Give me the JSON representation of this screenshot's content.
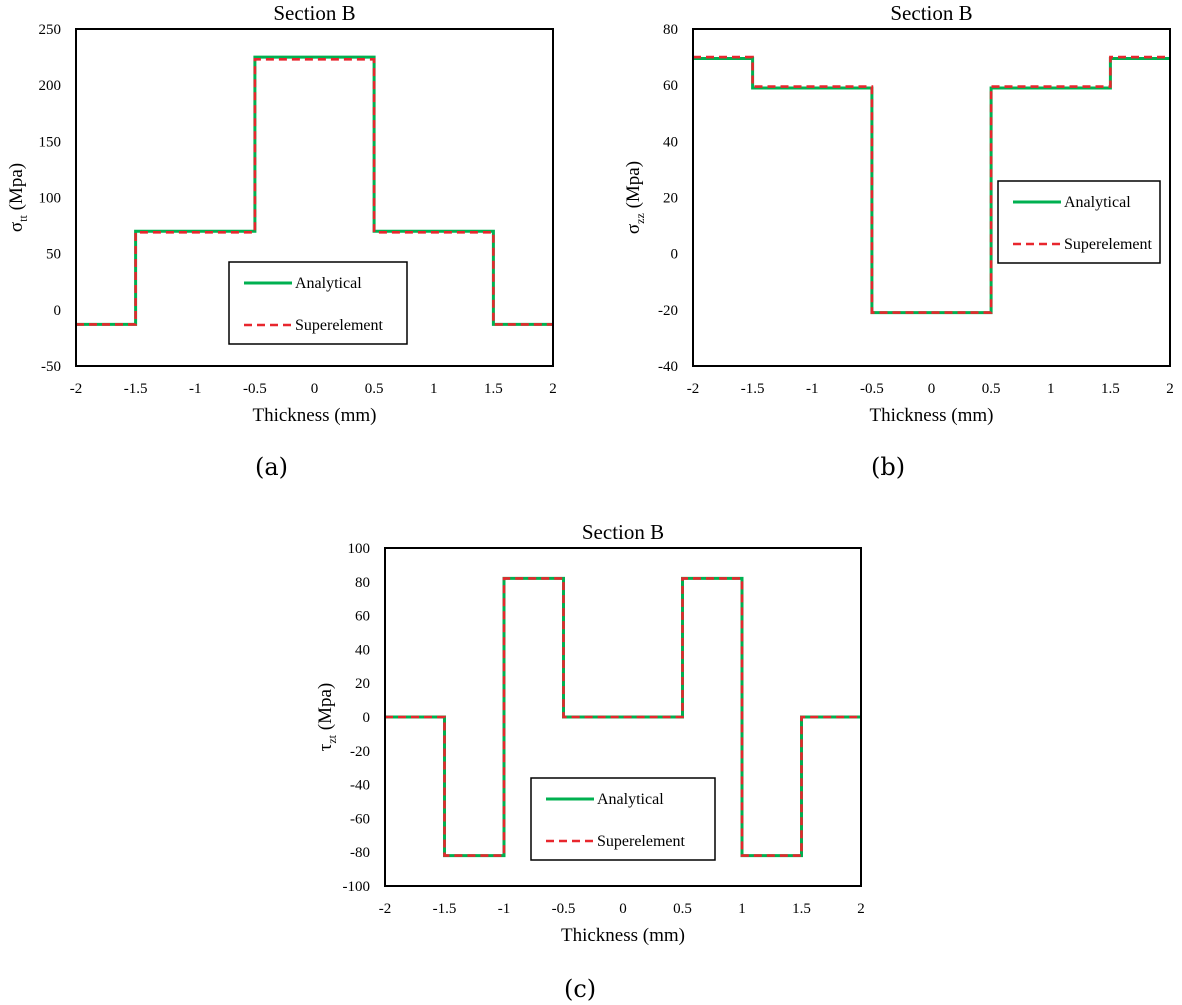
{
  "colors": {
    "analytical": "#00b050",
    "superelement": "#e8262d",
    "frame": "#000000"
  },
  "chart_data": [
    {
      "type": "line",
      "caption": "(a)",
      "title": "Section B",
      "xlabel": "Thickness (mm)",
      "ylabel_symbol": "σ",
      "ylabel_sub": "tt",
      "ylabel_unit": " (Mpa)",
      "xlim": [
        -2,
        2
      ],
      "ylim": [
        -50,
        250
      ],
      "xticks": [
        -2,
        -1.5,
        -1,
        -0.5,
        0,
        0.5,
        1,
        1.5,
        2
      ],
      "yticks": [
        -50,
        0,
        50,
        100,
        150,
        200,
        250
      ],
      "legend": "center-bottom",
      "series": [
        {
          "name": "Analytical",
          "style": "solid",
          "color": "#00b050",
          "x": [
            -2,
            -1.5,
            -1.5,
            -0.5,
            -0.5,
            0.5,
            0.5,
            1.5,
            1.5,
            2
          ],
          "y": [
            -13,
            -13,
            70,
            70,
            225,
            225,
            70,
            70,
            -13,
            -13
          ]
        },
        {
          "name": "Superelement",
          "style": "dashed",
          "color": "#e8262d",
          "x": [
            -2,
            -1.5,
            -1.5,
            -0.5,
            -0.5,
            0.5,
            0.5,
            1.5,
            1.5,
            2
          ],
          "y": [
            -13,
            -13,
            69,
            69,
            223,
            223,
            69,
            69,
            -13,
            -13
          ]
        }
      ]
    },
    {
      "type": "line",
      "caption": "(b)",
      "title": "Section B",
      "xlabel": "Thickness (mm)",
      "ylabel_symbol": "σ",
      "ylabel_sub": "zz",
      "ylabel_unit": " (Mpa)",
      "xlim": [
        -2,
        2
      ],
      "ylim": [
        -40,
        80
      ],
      "xticks": [
        -2,
        -1.5,
        -1,
        -0.5,
        0,
        0.5,
        1,
        1.5,
        2
      ],
      "yticks": [
        -40,
        -20,
        0,
        20,
        40,
        60,
        80
      ],
      "legend": "center-right",
      "series": [
        {
          "name": "Analytical",
          "style": "solid",
          "color": "#00b050",
          "x": [
            -2,
            -1.5,
            -1.5,
            -0.5,
            -0.5,
            0.5,
            0.5,
            1.5,
            1.5,
            2
          ],
          "y": [
            69.5,
            69.5,
            59,
            59,
            -21,
            -21,
            59,
            59,
            69.5,
            69.5
          ]
        },
        {
          "name": "Superelement",
          "style": "dashed",
          "color": "#e8262d",
          "x": [
            -2,
            -1.5,
            -1.5,
            -0.5,
            -0.5,
            0.5,
            0.5,
            1.5,
            1.5,
            2
          ],
          "y": [
            70,
            70,
            59.5,
            59.5,
            -21,
            -21,
            59.5,
            59.5,
            70,
            70
          ]
        }
      ]
    },
    {
      "type": "line",
      "caption": "(c)",
      "title": "Section B",
      "xlabel": "Thickness (mm)",
      "ylabel_symbol": "τ",
      "ylabel_sub": "zt",
      "ylabel_unit": " (Mpa)",
      "xlim": [
        -2,
        2
      ],
      "ylim": [
        -100,
        100
      ],
      "xticks": [
        -2,
        -1.5,
        -1,
        -0.5,
        0,
        0.5,
        1,
        1.5,
        2
      ],
      "yticks": [
        -100,
        -80,
        -60,
        -40,
        -20,
        0,
        20,
        40,
        60,
        80,
        100
      ],
      "legend": "center-bottom",
      "series": [
        {
          "name": "Analytical",
          "style": "solid",
          "color": "#00b050",
          "x": [
            -2,
            -1.5,
            -1.5,
            -1,
            -1,
            -0.5,
            -0.5,
            0.5,
            0.5,
            1,
            1,
            1.5,
            1.5,
            2
          ],
          "y": [
            0,
            0,
            -82,
            -82,
            82,
            82,
            0,
            0,
            82,
            82,
            -82,
            -82,
            0,
            0
          ]
        },
        {
          "name": "Superelement",
          "style": "dashed",
          "color": "#e8262d",
          "x": [
            -2,
            -1.5,
            -1.5,
            -1,
            -1,
            -0.5,
            -0.5,
            0.5,
            0.5,
            1,
            1,
            1.5,
            1.5,
            2
          ],
          "y": [
            0,
            0,
            -82,
            -82,
            82,
            82,
            0,
            0,
            82,
            82,
            -82,
            -82,
            0,
            0
          ]
        }
      ]
    }
  ]
}
